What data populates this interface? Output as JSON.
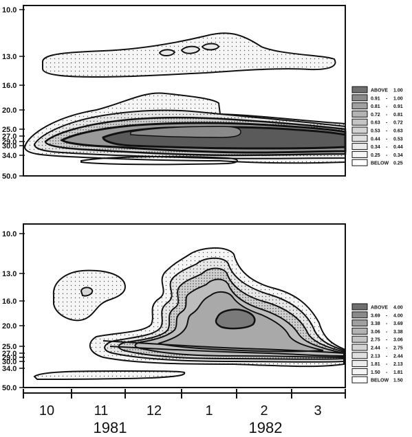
{
  "chart_data": [
    {
      "type": "contour",
      "y_ticks": [
        "10.0",
        "13.0",
        "16.0",
        "20.0",
        "25.0",
        "27.0",
        "29.0",
        "30.0",
        "34.0",
        "50.0"
      ],
      "legend": [
        {
          "label": "ABOVE",
          "value": "1.00",
          "fill": "#6f6f6f"
        },
        {
          "label": "0.91",
          "value": "1.00",
          "fill": "#8a8a8a"
        },
        {
          "label": "0.81",
          "value": "0.91",
          "fill": "#a0a0a0"
        },
        {
          "label": "0.72",
          "value": "0.81",
          "fill": "#b3b3b3"
        },
        {
          "label": "0.63",
          "value": "0.72",
          "fill": "#c4c4c4"
        },
        {
          "label": "0.53",
          "value": "0.63",
          "fill": "#d3d3d3"
        },
        {
          "label": "0.44",
          "value": "0.53",
          "fill": "#e0e0e0"
        },
        {
          "label": "0.34",
          "value": "0.44",
          "fill": "#ebebeb"
        },
        {
          "label": "0.25",
          "value": "0.34",
          "fill": "#f4f4f4"
        },
        {
          "label": "BELOW",
          "value": "0.25",
          "fill": "#ffffff"
        }
      ]
    },
    {
      "type": "contour",
      "y_ticks": [
        "10.0",
        "13.0",
        "16.0",
        "20.0",
        "25.0",
        "27.0",
        "29.0",
        "30.0",
        "34.0",
        "50.0"
      ],
      "legend": [
        {
          "label": "ABOVE",
          "value": "4.00",
          "fill": "#6f6f6f"
        },
        {
          "label": "3.69",
          "value": "4.00",
          "fill": "#8a8a8a"
        },
        {
          "label": "3.38",
          "value": "3.69",
          "fill": "#a0a0a0"
        },
        {
          "label": "3.06",
          "value": "3.38",
          "fill": "#b3b3b3"
        },
        {
          "label": "2.75",
          "value": "3.06",
          "fill": "#c4c4c4"
        },
        {
          "label": "2.44",
          "value": "2.75",
          "fill": "#d3d3d3"
        },
        {
          "label": "2.13",
          "value": "2.44",
          "fill": "#e0e0e0"
        },
        {
          "label": "1.81",
          "value": "2.13",
          "fill": "#ebebeb"
        },
        {
          "label": "1.50",
          "value": "1.81",
          "fill": "#f4f4f4"
        },
        {
          "label": "BELOW",
          "value": "1.50",
          "fill": "#ffffff"
        }
      ]
    }
  ],
  "x_axis": {
    "months": [
      "10",
      "11",
      "12",
      "1",
      "2",
      "3"
    ],
    "years": [
      "1981",
      "1982"
    ]
  }
}
